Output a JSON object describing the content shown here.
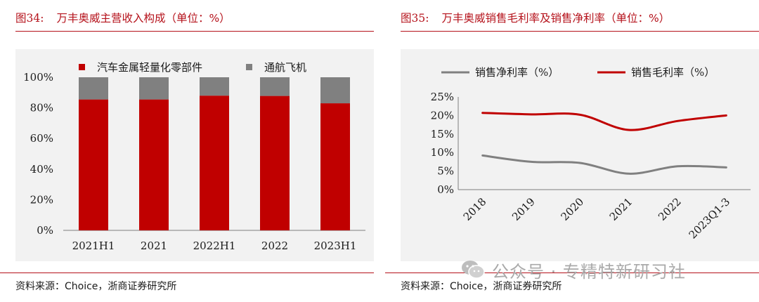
{
  "left": {
    "figure_number": "图34:",
    "figure_title": "万丰奥威主营收入构成（单位：%）",
    "source": "资料来源：Choice，浙商证券研究所"
  },
  "right": {
    "figure_number": "图35:",
    "figure_title": "万丰奥威销售毛利率及销售净利率（单位：%）",
    "source": "资料来源：Choice，浙商证券研究所"
  },
  "watermark": "公众号 · 专精特新研习社",
  "colors": {
    "accent": "#b5121b",
    "red_series": "#c00000",
    "gray_series": "#808080",
    "plot_bg": "#f2f2f2"
  },
  "chart_data": [
    {
      "type": "bar",
      "stacked": true,
      "title": "万丰奥威主营收入构成（单位：%）",
      "categories": [
        "2021H1",
        "2021",
        "2022H1",
        "2022",
        "2023H1"
      ],
      "series": [
        {
          "name": "汽车金属轻量化零部件",
          "values": [
            85.5,
            85.5,
            88,
            87.8,
            83
          ]
        },
        {
          "name": "通航飞机",
          "values": [
            14.5,
            14.5,
            12,
            12.2,
            17
          ]
        }
      ],
      "ylim": [
        0,
        100
      ],
      "yticks": [
        "0%",
        "20%",
        "40%",
        "60%",
        "80%",
        "100%"
      ],
      "legend": "top"
    },
    {
      "type": "line",
      "title": "万丰奥威销售毛利率及销售净利率（单位：%）",
      "categories": [
        "2018",
        "2019",
        "2020",
        "2021",
        "2022",
        "2023Q1-3"
      ],
      "series": [
        {
          "name": "销售净利率（%）",
          "values": [
            9.2,
            7.5,
            7.2,
            4.3,
            6.3,
            6.0
          ]
        },
        {
          "name": "销售毛利率（%）",
          "values": [
            20.7,
            20.3,
            20.2,
            16.1,
            18.5,
            20.0
          ]
        }
      ],
      "ylim": [
        0,
        25
      ],
      "yticks": [
        "0%",
        "5%",
        "10%",
        "15%",
        "20%",
        "25%"
      ],
      "legend": "top"
    }
  ]
}
